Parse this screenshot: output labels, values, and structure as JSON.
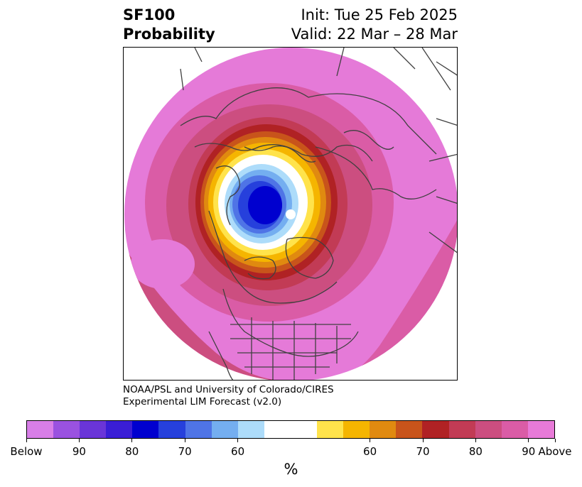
{
  "header": {
    "variable": "SF100",
    "product": "Probability",
    "init": "Init: Tue 25 Feb 2025",
    "valid": "Valid: 22 Mar – 28 Mar"
  },
  "credit": {
    "line1": "NOAA/PSL and University of Colorado/CIRES",
    "line2": "Experimental LIM Forecast (v2.0)"
  },
  "colorbar": {
    "units": "%",
    "colors": [
      "#d87ee8",
      "#9a52e0",
      "#6a35d8",
      "#3a1ed6",
      "#0000cf",
      "#2640dc",
      "#4f74e6",
      "#74aef0",
      "#addcfa",
      "#ffffff",
      "#ffe34b",
      "#f5b500",
      "#e08a10",
      "#c8541b",
      "#b02224",
      "#c23b55",
      "#cc4e80",
      "#da5ca6",
      "#e87ad8"
    ],
    "tick_labels": [
      "Below",
      "90",
      "80",
      "70",
      "60",
      "60",
      "70",
      "80",
      "90",
      "Above"
    ]
  },
  "map": {
    "projection": "north-polar-stereographic",
    "fill_color": "#e57ad8",
    "coastline_color": "#404040"
  }
}
